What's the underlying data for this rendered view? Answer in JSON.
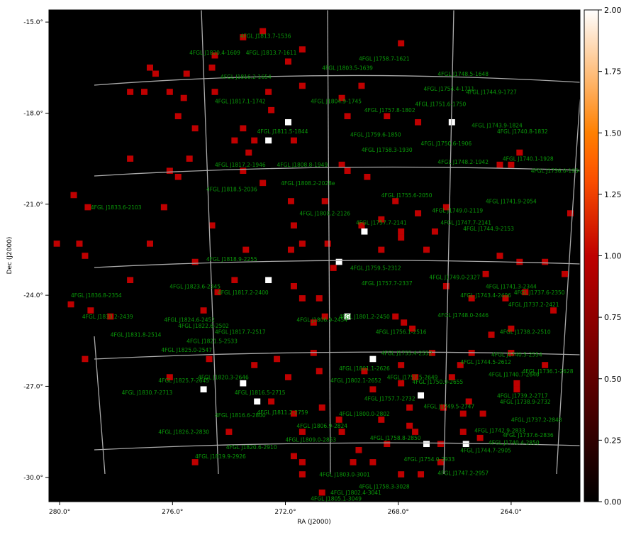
{
  "chart_data": {
    "type": "skymap",
    "x_label": "RA (J2000)",
    "y_label": "Dec (J2000)",
    "xlim": [
      280.38,
      261.56
    ],
    "ylim": [
      -30.8,
      -14.6
    ],
    "xticks": [
      {
        "value": 280,
        "label": "280.0°"
      },
      {
        "value": 276,
        "label": "276.0°"
      },
      {
        "value": 272,
        "label": "272.0°"
      },
      {
        "value": 268,
        "label": "268.0°"
      },
      {
        "value": 264,
        "label": "264.0°"
      }
    ],
    "yticks": [
      {
        "value": -15,
        "label": "-15.0°"
      },
      {
        "value": -18,
        "label": "-18.0°"
      },
      {
        "value": -21,
        "label": "-21.0°"
      },
      {
        "value": -24,
        "label": "-24.0°"
      },
      {
        "value": -27,
        "label": "-27.0°"
      },
      {
        "value": -30,
        "label": "-30.0°"
      }
    ],
    "clim": [
      0,
      2
    ],
    "cticks": [
      {
        "value": 0,
        "label": "0.00"
      },
      {
        "value": 0.25,
        "label": "0.25"
      },
      {
        "value": 0.5,
        "label": "0.50"
      },
      {
        "value": 0.75,
        "label": "0.75"
      },
      {
        "value": 1,
        "label": "1.00"
      },
      {
        "value": 1.25,
        "label": "1.25"
      },
      {
        "value": 1.5,
        "label": "1.50"
      },
      {
        "value": 1.75,
        "label": "1.75"
      },
      {
        "value": 2,
        "label": "2.00"
      }
    ],
    "colormap": "gist_heat",
    "label_color": "#0a9a0a",
    "pixels": {
      "ra": [
        272.8,
        273.5,
        267.9,
        271.4,
        274.5,
        271.9,
        276.8,
        274.6,
        275.5,
        276.6,
        277.5,
        277.0,
        276.1,
        274.5,
        272.6,
        275.6,
        270.0,
        269.3,
        271.4,
        272.5,
        275.8,
        269.8,
        268.4,
        267.3,
        266.1,
        271.9,
        272.6,
        275.2,
        273.5,
        273.8,
        273.3,
        271.7,
        273.1,
        275.4,
        277.5,
        269.8,
        269.1,
        276.1,
        275.8,
        273.5,
        270.0,
        263.7,
        264.4,
        264.0,
        272.8,
        279.5,
        279.0,
        276.3,
        271.8,
        270.6,
        268.1,
        266.3,
        261.9,
        267.3,
        274.6,
        271.7,
        269.3,
        268.6,
        280.1,
        279.3,
        276.8,
        271.4,
        270.5,
        267.9,
        267.9,
        266.7,
        273.4,
        271.8,
        268.6,
        267.0,
        279.1,
        275.2,
        270.1,
        269.2,
        269.8,
        268.9,
        273.5,
        274.9,
        273.0,
        267.2,
        267.0,
        265.6,
        272.6,
        277.5,
        273.8,
        270.3,
        264.9,
        263.7,
        262.8,
        264.4,
        262.1,
        279.6,
        278.9,
        274.4,
        271.7,
        271.4,
        270.8,
        266.3,
        265.4,
        264.2,
        263.5,
        262.5,
        278.2,
        274.9,
        270.6,
        271.0,
        268.1,
        267.8,
        267.5,
        264.7,
        264.0,
        279.1,
        274.7,
        272.3,
        271.0,
        266.8,
        265.4,
        264.0,
        273.1,
        267.9,
        265.8,
        262.8,
        276.1,
        271.9,
        269.2,
        270.8,
        267.9,
        267.4,
        266.1,
        263.8,
        263.8,
        272.5,
        270.7,
        268.9,
        267.6,
        266.4,
        265.5,
        271.7,
        270.1,
        268.6,
        267.6,
        265.7,
        265.0,
        274.0,
        271.4,
        270.0,
        267.4,
        265.7,
        265.1,
        269.4,
        268.4,
        266.5,
        275.2,
        271.7,
        271.4,
        269.6,
        268.9,
        266.5,
        267.9,
        267.2,
        271.4,
        270.7
      ],
      "dec": [
        -15.3,
        -15.5,
        -15.7,
        -15.9,
        -16.1,
        -16.3,
        -16.5,
        -16.5,
        -16.7,
        -16.7,
        -17.3,
        -17.3,
        -17.3,
        -17.3,
        -17.3,
        -17.5,
        -17.5,
        -17.1,
        -17.1,
        -17.9,
        -18.1,
        -18.1,
        -18.1,
        -18.3,
        -18.3,
        -18.3,
        -18.9,
        -18.5,
        -18.5,
        -18.9,
        -19.3,
        -18.9,
        -18.9,
        -19.5,
        -19.5,
        -19.9,
        -20.1,
        -19.9,
        -20.1,
        -19.9,
        -19.7,
        -19.3,
        -19.7,
        -19.7,
        -20.3,
        -20.7,
        -21.1,
        -21.1,
        -20.9,
        -20.9,
        -20.9,
        -21.1,
        -21.3,
        -21.3,
        -21.7,
        -21.7,
        -21.7,
        -21.5,
        -22.3,
        -22.3,
        -22.3,
        -22.3,
        -22.3,
        -22.1,
        -21.9,
        -21.9,
        -22.5,
        -22.5,
        -22.5,
        -22.5,
        -22.7,
        -22.9,
        -22.9,
        -21.9,
        -24.7,
        -26.1,
        -26.9,
        -27.1,
        -27.5,
        -27.3,
        -28.9,
        -28.9,
        -23.5,
        -23.5,
        -23.5,
        -23.1,
        -23.3,
        -22.9,
        -22.9,
        -22.7,
        -23.3,
        -24.3,
        -24.5,
        -23.9,
        -23.7,
        -24.1,
        -24.1,
        -23.7,
        -24.1,
        -24.1,
        -23.9,
        -24.5,
        -24.7,
        -24.5,
        -24.7,
        -24.9,
        -24.7,
        -24.9,
        -25.1,
        -25.3,
        -25.1,
        -26.1,
        -26.1,
        -26.1,
        -25.9,
        -25.9,
        -25.9,
        -25.9,
        -26.3,
        -26.3,
        -26.3,
        -26.3,
        -26.7,
        -26.7,
        -26.5,
        -26.5,
        -26.9,
        -26.7,
        -26.7,
        -26.9,
        -27.1,
        -27.5,
        -27.7,
        -27.1,
        -27.7,
        -27.7,
        -27.5,
        -27.9,
        -28.1,
        -28.1,
        -28.3,
        -27.9,
        -27.9,
        -28.5,
        -28.5,
        -28.5,
        -28.5,
        -28.5,
        -28.7,
        -29.1,
        -28.9,
        -28.9,
        -29.5,
        -29.3,
        -29.5,
        -29.5,
        -29.5,
        -29.5,
        -29.9,
        -29.9,
        -29.9,
        -30.5
      ],
      "values": [
        1,
        1,
        1,
        1,
        1,
        1,
        1,
        1,
        1,
        1,
        1,
        1,
        1,
        1,
        1,
        1,
        1,
        1,
        1,
        1,
        1,
        1,
        1,
        1,
        2,
        2,
        2,
        1,
        1,
        1,
        1,
        1,
        1,
        1,
        1,
        1,
        1,
        1,
        1,
        1,
        1,
        1,
        1,
        1,
        1,
        1,
        1,
        1,
        1,
        1,
        1,
        1,
        1,
        1,
        1,
        1,
        1,
        1,
        1,
        1,
        1,
        1,
        1,
        1,
        1,
        1,
        1,
        1,
        1,
        1,
        1,
        1,
        2,
        2,
        2,
        2,
        2,
        2,
        2,
        2,
        2,
        2,
        2,
        1,
        1,
        1,
        1,
        1,
        1,
        1,
        1,
        1,
        1,
        1,
        1,
        1,
        1,
        1,
        1,
        1,
        1,
        1,
        1,
        1,
        1,
        1,
        1,
        1,
        1,
        1,
        1,
        1,
        1,
        1,
        1,
        1,
        1,
        1,
        1,
        1,
        1,
        1,
        1,
        1,
        1,
        1,
        1,
        1,
        1,
        1,
        1,
        1,
        1,
        1,
        1,
        1,
        1,
        1,
        1,
        1,
        1,
        1,
        1,
        1,
        1,
        1,
        1,
        1,
        1,
        1,
        1,
        1,
        1,
        1,
        1,
        1,
        1,
        1,
        1,
        1,
        1,
        1,
        1,
        1
      ]
    },
    "sources": [
      {
        "name": "4FGL J1813.7-1536",
        "ra": 272.7,
        "dec": -15.45
      },
      {
        "name": "4FGL J1820.4-1609",
        "ra": 274.5,
        "dec": -16.0
      },
      {
        "name": "4FGL J1813.7-1611",
        "ra": 272.5,
        "dec": -16.0
      },
      {
        "name": "4FGL J1758.7-1621",
        "ra": 268.5,
        "dec": -16.2
      },
      {
        "name": "4FGL J1803.5-1639",
        "ra": 269.8,
        "dec": -16.5
      },
      {
        "name": "4FGL J1748.5-1648",
        "ra": 265.7,
        "dec": -16.7
      },
      {
        "name": "4FGL J1816.2-1654",
        "ra": 273.4,
        "dec": -16.8
      },
      {
        "name": "4FGL J1754.4-1711",
        "ra": 266.2,
        "dec": -17.2
      },
      {
        "name": "4FGL J1744.9-1727",
        "ra": 264.7,
        "dec": -17.3
      },
      {
        "name": "4FGL J1817.1-1742",
        "ra": 273.6,
        "dec": -17.6
      },
      {
        "name": "4FGL J1804.9-1745",
        "ra": 270.2,
        "dec": -17.6
      },
      {
        "name": "4FGL J1751.6-1750",
        "ra": 266.5,
        "dec": -17.7
      },
      {
        "name": "4FGL J1757.8-1802",
        "ra": 268.3,
        "dec": -17.9
      },
      {
        "name": "4FGL J1743.9-1824",
        "ra": 264.5,
        "dec": -18.4
      },
      {
        "name": "4FGL J1740.8-1832",
        "ra": 263.6,
        "dec": -18.6
      },
      {
        "name": "4FGL J1811.5-1844",
        "ra": 272.1,
        "dec": -18.6
      },
      {
        "name": "4FGL J1759.6-1850",
        "ra": 268.8,
        "dec": -18.7
      },
      {
        "name": "4FGL J1750.6-1906",
        "ra": 266.3,
        "dec": -19.0
      },
      {
        "name": "4FGL J1758.3-1930",
        "ra": 268.4,
        "dec": -19.2
      },
      {
        "name": "4FGL J1740.1-1928",
        "ra": 263.4,
        "dec": -19.5
      },
      {
        "name": "4FGL J1748.2-1942",
        "ra": 265.7,
        "dec": -19.6
      },
      {
        "name": "4FGL J1817.2-1946",
        "ra": 273.6,
        "dec": -19.7
      },
      {
        "name": "4FGL J1808.8-1949",
        "ra": 271.4,
        "dec": -19.7
      },
      {
        "name": "4FGL J1736.0-1954",
        "ra": 262.4,
        "dec": -19.9
      },
      {
        "name": "4FGL J1808.2-2028e",
        "ra": 271.2,
        "dec": -20.3
      },
      {
        "name": "4FGL J1818.5-2036",
        "ra": 273.9,
        "dec": -20.5
      },
      {
        "name": "4FGL J1755.6-2050",
        "ra": 267.7,
        "dec": -20.7
      },
      {
        "name": "4FGL J1741.9-2054",
        "ra": 264.0,
        "dec": -20.9
      },
      {
        "name": "4FGL J1833.6-2103",
        "ra": 278.0,
        "dec": -21.1
      },
      {
        "name": "4FGL J1749.0-2119",
        "ra": 265.9,
        "dec": -21.2
      },
      {
        "name": "4FGL J1800.2-2126",
        "ra": 270.6,
        "dec": -21.3
      },
      {
        "name": "4FGL J1757.7-2141",
        "ra": 268.6,
        "dec": -21.6
      },
      {
        "name": "4FGL J1747.7-2141",
        "ra": 265.6,
        "dec": -21.6
      },
      {
        "name": "4FGL J1744.9-2153",
        "ra": 264.8,
        "dec": -21.8
      },
      {
        "name": "4FGL J1818.9-2255",
        "ra": 273.9,
        "dec": -22.8
      },
      {
        "name": "4FGL J1759.5-2312",
        "ra": 268.8,
        "dec": -23.1
      },
      {
        "name": "4FGL J1749.0-2327",
        "ra": 266.0,
        "dec": -23.4
      },
      {
        "name": "4FGL J1757.7-2337",
        "ra": 268.4,
        "dec": -23.6
      },
      {
        "name": "4FGL J1823.6-2345",
        "ra": 275.2,
        "dec": -23.7
      },
      {
        "name": "4FGL J1817.2-2400",
        "ra": 273.5,
        "dec": -23.9
      },
      {
        "name": "4FGL J1836.8-2354",
        "ra": 278.7,
        "dec": -24.0
      },
      {
        "name": "4FGL J1741.3-2344",
        "ra": 264.0,
        "dec": -23.7
      },
      {
        "name": "4FGL J1737.6-2350",
        "ra": 263.0,
        "dec": -23.9
      },
      {
        "name": "4FGL J1743.4-2406",
        "ra": 264.9,
        "dec": -24.0
      },
      {
        "name": "4FGL J1737.2-2421",
        "ra": 263.2,
        "dec": -24.3
      },
      {
        "name": "4FGL J1833.2-2439",
        "ra": 278.3,
        "dec": -24.7
      },
      {
        "name": "4FGL J1801.2-2450",
        "ra": 269.2,
        "dec": -24.7
      },
      {
        "name": "4FGL J1748.0-2446",
        "ra": 265.7,
        "dec": -24.65
      },
      {
        "name": "4FGL J1806.9-2454",
        "ra": 270.7,
        "dec": -24.8
      },
      {
        "name": "4FGL J1824.6-2452",
        "ra": 275.4,
        "dec": -24.8
      },
      {
        "name": "4FGL J1822.6-2502",
        "ra": 274.9,
        "dec": -25.0
      },
      {
        "name": "4FGL J1817.7-2517",
        "ra": 273.6,
        "dec": -25.2
      },
      {
        "name": "4FGL J1756.1-2516",
        "ra": 267.9,
        "dec": -25.2
      },
      {
        "name": "4FGL J1831.8-2514",
        "ra": 277.3,
        "dec": -25.3
      },
      {
        "name": "4FGL J1738.2-2510",
        "ra": 263.5,
        "dec": -25.2
      },
      {
        "name": "4FGL J1821.5-2533",
        "ra": 274.6,
        "dec": -25.5
      },
      {
        "name": "4FGL J1825.0-2547",
        "ra": 275.5,
        "dec": -25.8
      },
      {
        "name": "4FGL J1755.4-2552",
        "ra": 267.7,
        "dec": -25.9
      },
      {
        "name": "4FGL J1740.5-2554",
        "ra": 263.8,
        "dec": -25.95
      },
      {
        "name": "4FGL J1744.5-2612",
        "ra": 264.9,
        "dec": -26.2
      },
      {
        "name": "4FGL J1801.1-2626",
        "ra": 269.2,
        "dec": -26.4
      },
      {
        "name": "4FGL J1736.1-2628",
        "ra": 262.7,
        "dec": -26.5
      },
      {
        "name": "4FGL J1820.3-2646",
        "ra": 274.2,
        "dec": -26.7
      },
      {
        "name": "4FGL J1825.7-2645",
        "ra": 275.6,
        "dec": -26.8
      },
      {
        "name": "4FGL J1802.1-2652",
        "ra": 269.5,
        "dec": -26.8
      },
      {
        "name": "4FGL J1757.5-2649",
        "ra": 267.5,
        "dec": -26.7
      },
      {
        "name": "4FGL J1740.7-2640",
        "ra": 263.9,
        "dec": -26.6
      },
      {
        "name": "4FGL J1750.9-2655",
        "ra": 266.6,
        "dec": -26.85
      },
      {
        "name": "4FGL J1816.5-2715",
        "ra": 272.9,
        "dec": -27.2
      },
      {
        "name": "4FGL J1830.7-2713",
        "ra": 276.9,
        "dec": -27.2
      },
      {
        "name": "4FGL J1739.2-2717",
        "ra": 263.6,
        "dec": -27.3
      },
      {
        "name": "4FGL J1757.7-2732",
        "ra": 268.3,
        "dec": -27.4
      },
      {
        "name": "4FGL J1738.9-2732",
        "ra": 263.5,
        "dec": -27.5
      },
      {
        "name": "4FGL J1749.5-2747",
        "ra": 266.2,
        "dec": -27.65
      },
      {
        "name": "4FGL J1811.2-2759",
        "ra": 272.1,
        "dec": -27.85
      },
      {
        "name": "4FGL J1816.6-2800",
        "ra": 273.6,
        "dec": -27.95
      },
      {
        "name": "4FGL J1800.0-2802",
        "ra": 269.2,
        "dec": -27.9
      },
      {
        "name": "4FGL J1737.2-2848",
        "ra": 263.1,
        "dec": -28.1
      },
      {
        "name": "4FGL J1806.9-2824",
        "ra": 270.7,
        "dec": -28.3
      },
      {
        "name": "4FGL J1826.2-2830",
        "ra": 275.6,
        "dec": -28.5
      },
      {
        "name": "4FGL J1742.9-2833",
        "ra": 264.4,
        "dec": -28.45
      },
      {
        "name": "4FGL J1737.6-2836",
        "ra": 263.4,
        "dec": -28.6
      },
      {
        "name": "4FGL J1809.0-2853",
        "ra": 271.1,
        "dec": -28.75
      },
      {
        "name": "4FGL J1758.8-2850",
        "ra": 268.1,
        "dec": -28.7
      },
      {
        "name": "4FGL J1740.4-2850",
        "ra": 263.9,
        "dec": -28.85
      },
      {
        "name": "4FGL J1820.6-2910",
        "ra": 273.2,
        "dec": -29.0
      },
      {
        "name": "4FGL J1744.7-2905",
        "ra": 264.9,
        "dec": -29.1
      },
      {
        "name": "4FGL J1754.0-2933",
        "ra": 266.9,
        "dec": -29.4
      },
      {
        "name": "4FGL J1819.9-2926",
        "ra": 274.3,
        "dec": -29.3
      },
      {
        "name": "4FGL J1803.0-3001",
        "ra": 269.9,
        "dec": -29.9
      },
      {
        "name": "4FGL J1747.2-2957",
        "ra": 265.7,
        "dec": -29.85
      },
      {
        "name": "4FGL J1758.3-3028",
        "ra": 268.5,
        "dec": -30.3
      },
      {
        "name": "4FGL J1802.4-3041",
        "ra": 269.5,
        "dec": -30.5
      },
      {
        "name": "4FGL J1805.1-3049",
        "ra": 270.2,
        "dec": -30.7
      }
    ]
  }
}
